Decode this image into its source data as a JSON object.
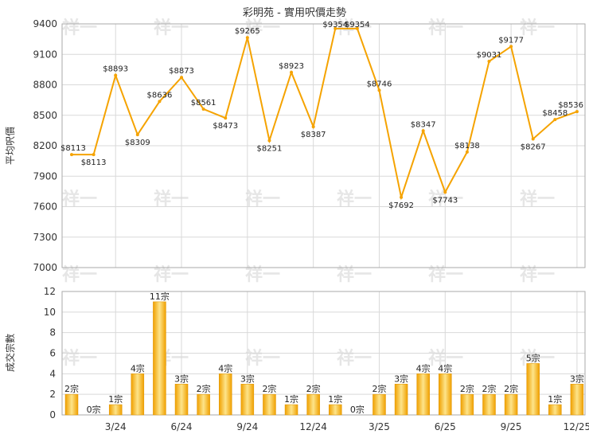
{
  "chart_data": [
    {
      "type": "line",
      "title": "彩明苑 - 實用呎價走勢",
      "ylabel": "平均呎價",
      "ylim": [
        7000,
        9400
      ],
      "yticks": [
        7000,
        7300,
        7600,
        7900,
        8200,
        8500,
        8800,
        9100,
        9400
      ],
      "color": "#f5a300",
      "grid": true,
      "values": [
        8113,
        8113,
        8893,
        8309,
        8636,
        8873,
        8561,
        8473,
        9265,
        8251,
        8923,
        8387,
        9354,
        9354,
        8746,
        7692,
        8347,
        7743,
        8138,
        9031,
        9177,
        8267,
        8458,
        8536
      ],
      "labels": [
        "$8113",
        "$8113",
        "$8893",
        "$8309",
        "$8636",
        "$8873",
        "$8561",
        "$8473",
        "$9265",
        "$8251",
        "$8923",
        "$8387",
        "$9354",
        "$9354",
        "$8746",
        "$7692",
        "$8347",
        "$7743",
        "$8138",
        "$9031",
        "$9177",
        "$8267",
        "$8458",
        "$8536"
      ]
    },
    {
      "type": "bar",
      "ylabel": "成交宗數",
      "ylim": [
        0,
        12
      ],
      "yticks": [
        0,
        2,
        4,
        6,
        8,
        10,
        12
      ],
      "grid": true,
      "values": [
        2,
        0,
        1,
        4,
        11,
        3,
        2,
        4,
        3,
        2,
        1,
        2,
        1,
        0,
        2,
        3,
        4,
        4,
        2,
        2,
        2,
        5,
        1,
        3
      ],
      "labels": [
        "2宗",
        "0宗",
        "1宗",
        "4宗",
        "11宗",
        "3宗",
        "2宗",
        "4宗",
        "3宗",
        "2宗",
        "1宗",
        "2宗",
        "1宗",
        "0宗",
        "2宗",
        "3宗",
        "4宗",
        "4宗",
        "2宗",
        "2宗",
        "2宗",
        "5宗",
        "1宗",
        "3宗"
      ],
      "xticks": [
        {
          "index": 2,
          "label": "3/24"
        },
        {
          "index": 5,
          "label": "6/24"
        },
        {
          "index": 8,
          "label": "9/24"
        },
        {
          "index": 11,
          "label": "12/24"
        },
        {
          "index": 14,
          "label": "3/25"
        },
        {
          "index": 17,
          "label": "6/25"
        },
        {
          "index": 20,
          "label": "9/25"
        },
        {
          "index": 23,
          "label": "12/25"
        }
      ]
    }
  ],
  "watermark": "祥一"
}
